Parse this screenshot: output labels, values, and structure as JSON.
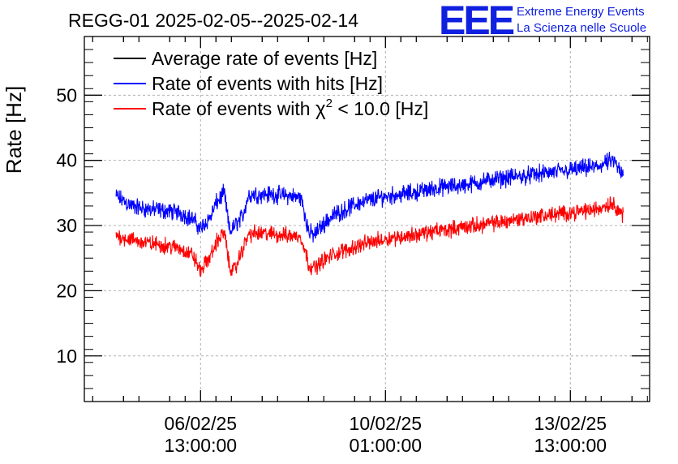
{
  "chart_data": {
    "type": "line",
    "title": "REGG-01 2025-02-05--2025-02-14",
    "logo": {
      "mark": "EEE",
      "line1": "Extreme Energy Events",
      "line2": "La Scienza nelle Scuole"
    },
    "ylabel": "Rate [Hz]",
    "xlabel": "",
    "ylim": [
      3,
      59
    ],
    "yticks": [
      10,
      20,
      30,
      40,
      50
    ],
    "xlim_days": [
      -2.2,
      8.5
    ],
    "xticks": [
      {
        "pos": 0,
        "date": "06/02/25",
        "time": "13:00:00"
      },
      {
        "pos": 3.5,
        "date": "10/02/25",
        "time": "01:00:00"
      },
      {
        "pos": 7,
        "date": "13/02/25",
        "time": "13:00:00"
      }
    ],
    "x_unit": "days relative to 06/02/25 13:00:00",
    "grid": true,
    "legend_position": "top-left",
    "legend": [
      {
        "label": "Average rate of events [Hz]",
        "color": "#000000"
      },
      {
        "label": "Rate of events with hits [Hz]",
        "color": "#0000ff"
      },
      {
        "label_prefix": "Rate of events with ",
        "label_symbol": "χ",
        "label_sup": "2",
        "label_suffix": " < 10.0 [Hz]",
        "color": "#ff0000"
      }
    ],
    "series": [
      {
        "name": "Rate of events with hits [Hz]",
        "color": "#0000ff",
        "noise": 1.2,
        "x": [
          -1.6,
          -1.3,
          -1.0,
          -0.7,
          -0.4,
          -0.15,
          0.0,
          0.2,
          0.3,
          0.45,
          0.55,
          0.65,
          0.8,
          0.9,
          1.0,
          1.3,
          1.6,
          1.9,
          2.05,
          2.15,
          2.3,
          2.5,
          3.0,
          3.5,
          4.0,
          4.5,
          5.0,
          5.5,
          6.0,
          6.5,
          7.0,
          7.5,
          7.8,
          8.0
        ],
        "y": [
          34.5,
          33.0,
          32.5,
          32.3,
          32.0,
          31.0,
          29.5,
          31.5,
          33.5,
          35.0,
          29.0,
          30.0,
          31.5,
          34.5,
          34.8,
          34.8,
          34.6,
          34.3,
          29.0,
          28.5,
          30.0,
          31.5,
          33.5,
          34.5,
          35.0,
          35.8,
          36.2,
          37.0,
          37.5,
          38.0,
          38.5,
          39.0,
          40.0,
          37.5
        ]
      },
      {
        "name": "Rate of events with χ2 < 10.0 [Hz]",
        "color": "#ff0000",
        "noise": 1.1,
        "x": [
          -1.6,
          -1.3,
          -1.0,
          -0.7,
          -0.4,
          -0.15,
          0.0,
          0.2,
          0.3,
          0.45,
          0.55,
          0.65,
          0.8,
          0.9,
          1.0,
          1.3,
          1.6,
          1.9,
          2.05,
          2.15,
          2.3,
          2.5,
          3.0,
          3.5,
          4.0,
          4.5,
          5.0,
          5.5,
          6.0,
          6.5,
          7.0,
          7.5,
          7.8,
          8.0
        ],
        "y": [
          28.5,
          27.8,
          27.3,
          27.0,
          26.5,
          25.5,
          23.0,
          25.5,
          27.5,
          29.0,
          23.5,
          23.2,
          26.5,
          28.5,
          28.8,
          28.7,
          28.5,
          28.3,
          24.0,
          23.5,
          24.5,
          25.5,
          27.0,
          28.0,
          28.5,
          29.2,
          29.8,
          30.3,
          31.0,
          31.5,
          32.0,
          32.5,
          33.5,
          31.5
        ]
      }
    ]
  }
}
